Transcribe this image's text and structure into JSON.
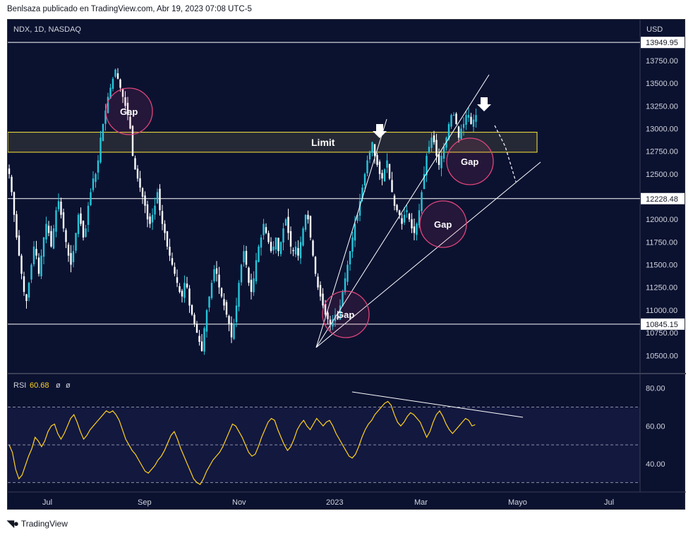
{
  "header": {
    "publisher_line": "Benlsaza publicado en TradingView.com, Abr 19, 2023 07:08 UTC-5"
  },
  "footer": {
    "brand": "TradingView",
    "logo_icon": "tradingview-logo-icon"
  },
  "colors": {
    "background": "#0b1230",
    "bull": "#26c6da",
    "bear": "#ffffff",
    "rsi_line": "#ffd21f",
    "gap_circle": "#e0457b",
    "limit_box": "#ffeb3b",
    "grid_text": "#d1d4dc"
  },
  "chart_data": [
    {
      "type": "candlestick",
      "symbol_label": "NDX, 1D, NASDAQ",
      "currency": "USD",
      "y_ticks": [
        "13750.00",
        "13500.00",
        "13250.00",
        "13000.00",
        "12750.00",
        "12500.00",
        "12000.00",
        "11750.00",
        "11500.00",
        "11250.00",
        "11000.00",
        "10750.00",
        "10500.00"
      ],
      "ylim": [
        10300,
        14200
      ],
      "x_ticks": [
        "Jul",
        "Sep",
        "Nov",
        "2023",
        "Mar",
        "Mayo",
        "Jul"
      ],
      "horizontal_levels": [
        {
          "price": 13949.95,
          "label": "13949.95"
        },
        {
          "price": 12228.48,
          "label": "12228.48"
        },
        {
          "price": 10845.15,
          "label": "10845.15"
        }
      ],
      "limit_zone": {
        "label": "Limit",
        "low": 12740,
        "high": 12960
      },
      "gap_annotations": [
        "Gap",
        "Gap",
        "Gap",
        "Gap"
      ],
      "price_path_daily_close": [
        12500,
        12300,
        12050,
        11800,
        11600,
        11400,
        11200,
        11100,
        11300,
        11500,
        11700,
        11600,
        11400,
        11600,
        11800,
        11950,
        11850,
        11700,
        11900,
        12100,
        12200,
        12050,
        11900,
        11750,
        11600,
        11500,
        11650,
        11850,
        12050,
        11950,
        11800,
        11900,
        12150,
        12300,
        12450,
        12500,
        12650,
        12900,
        13050,
        13200,
        13350,
        13450,
        13550,
        13650,
        13550,
        13450,
        13350,
        13250,
        13150,
        13000,
        12700,
        12550,
        12450,
        12350,
        12250,
        12150,
        12000,
        11950,
        12050,
        12150,
        12300,
        12100,
        11950,
        11850,
        11700,
        11600,
        11500,
        11400,
        11300,
        11200,
        11150,
        11300,
        11250,
        11050,
        10950,
        10850,
        10750,
        10650,
        10550,
        10800,
        11000,
        11150,
        11300,
        11450,
        11400,
        11250,
        11150,
        11050,
        10950,
        10850,
        10700,
        10850,
        11050,
        11300,
        11500,
        11650,
        11500,
        11300,
        11200,
        11350,
        11550,
        11700,
        11800,
        11950,
        11850,
        11750,
        11650,
        11700,
        11800,
        11650,
        11750,
        11900,
        12000,
        11850,
        11700,
        11650,
        11700,
        11600,
        11750,
        11900,
        12050,
        12000,
        11800,
        11600,
        11400,
        11250,
        11150,
        11050,
        10950,
        10900,
        10850,
        10900,
        10950,
        10900,
        11050,
        11200,
        11350,
        11500,
        11650,
        11800,
        11950,
        12050,
        12200,
        12350,
        12500,
        12650,
        12750,
        12850,
        12700,
        12600,
        12500,
        12450,
        12550,
        12650,
        12450,
        12300,
        12150,
        12100,
        12050,
        11950,
        12050,
        12100,
        12000,
        11900,
        11850,
        11950,
        12100,
        12300,
        12500,
        12700,
        12800,
        12900,
        12850,
        12700,
        12600,
        12700,
        12800,
        12900,
        13050,
        13150,
        13150,
        13050,
        12900,
        13000,
        13050,
        13150,
        13150,
        13050,
        13100,
        13150
      ]
    },
    {
      "type": "line",
      "label": "RSI",
      "value_label": "60.68",
      "extra_labels": [
        "ø",
        "ø"
      ],
      "y_ticks": [
        "80.00",
        "60.00",
        "40.00"
      ],
      "ylim": [
        25,
        87
      ],
      "bands": [
        70,
        50,
        30
      ],
      "values": [
        50,
        46,
        37,
        32,
        34,
        39,
        44,
        48,
        54,
        52,
        49,
        52,
        57,
        60,
        61,
        56,
        53,
        56,
        60,
        64,
        66,
        62,
        57,
        53,
        55,
        58,
        60,
        62,
        64,
        66,
        68,
        67,
        68,
        66,
        63,
        58,
        53,
        50,
        47,
        45,
        42,
        39,
        36,
        35,
        37,
        39,
        42,
        44,
        47,
        51,
        55,
        57,
        53,
        48,
        44,
        40,
        36,
        32,
        30,
        29,
        32,
        36,
        39,
        42,
        44,
        46,
        49,
        53,
        57,
        61,
        60,
        57,
        54,
        50,
        46,
        44,
        45,
        49,
        54,
        58,
        62,
        64,
        63,
        58,
        54,
        50,
        47,
        49,
        53,
        58,
        61,
        63,
        60,
        58,
        61,
        64,
        62,
        60,
        62,
        63,
        60,
        56,
        53,
        50,
        47,
        44,
        43,
        45,
        49,
        54,
        58,
        61,
        63,
        66,
        68,
        70,
        72,
        73,
        71,
        66,
        62,
        60,
        62,
        65,
        67,
        66,
        64,
        62,
        58,
        54,
        57,
        62,
        66,
        68,
        65,
        61,
        58,
        56,
        58,
        60,
        62,
        64,
        63,
        60,
        60.68
      ],
      "trendline_label": ""
    }
  ]
}
